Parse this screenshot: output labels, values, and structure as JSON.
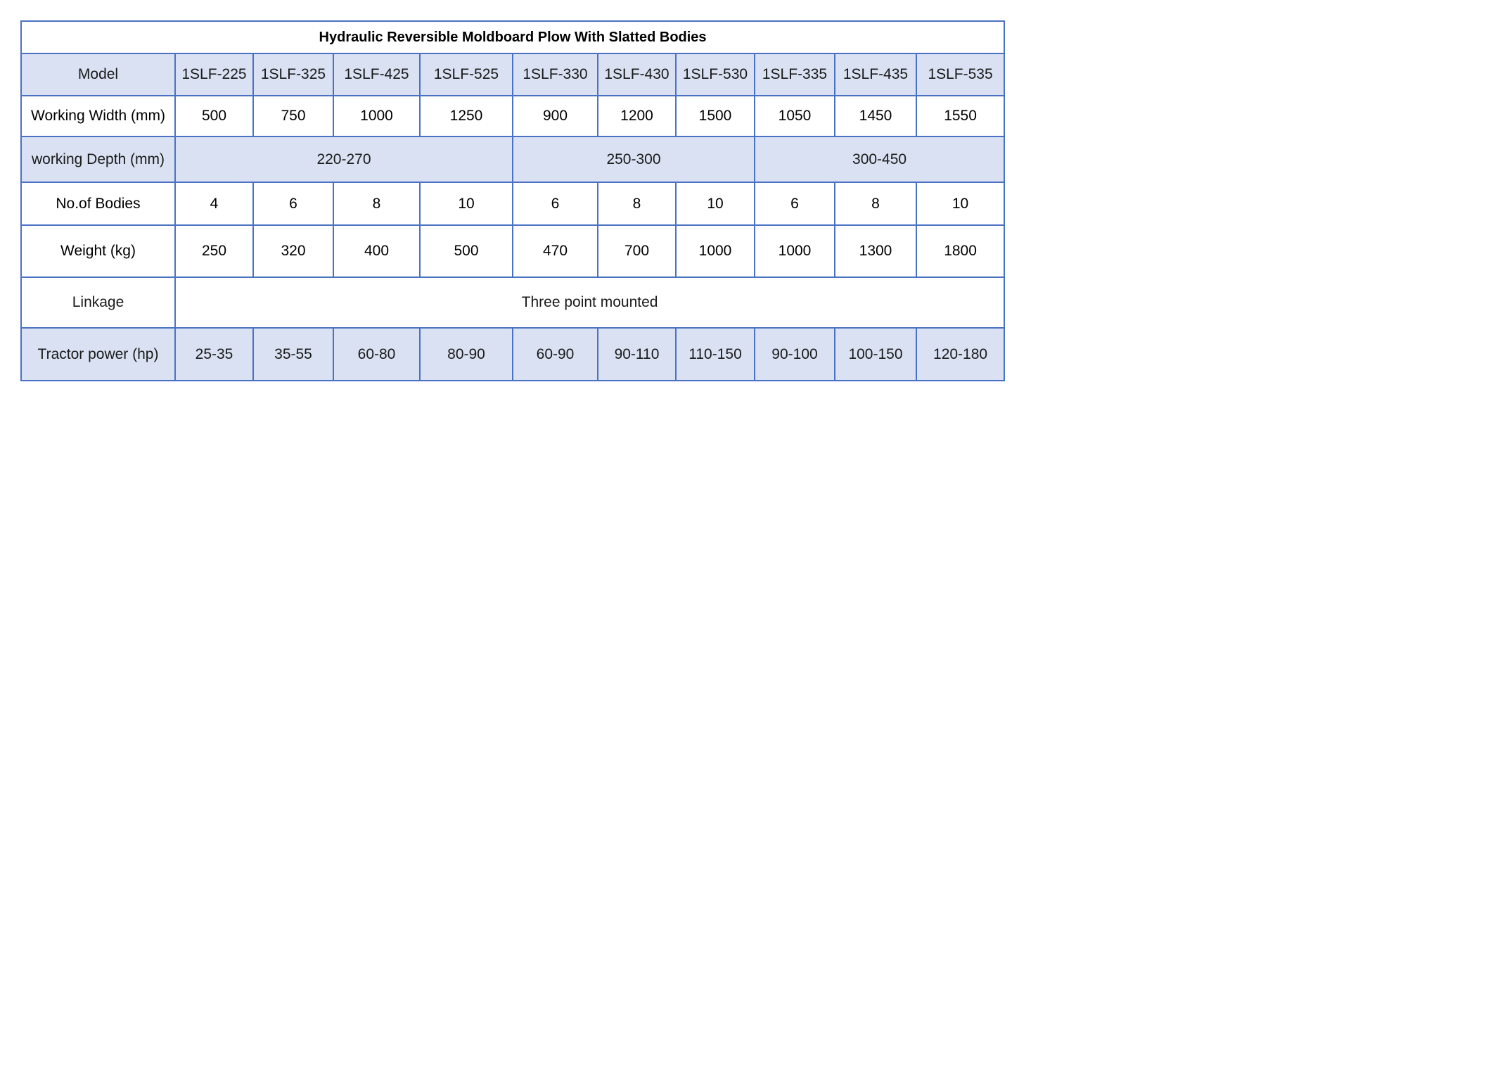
{
  "title": "Hydraulic Reversible Moldboard Plow With Slatted Bodies",
  "colors": {
    "border": "#4a72c4",
    "band_fill": "#d9e1f2"
  },
  "rows": {
    "model": {
      "label": "Model",
      "values": [
        "1SLF-225",
        "1SLF-325",
        "1SLF-425",
        "1SLF-525",
        "1SLF-330",
        "1SLF-430",
        "1SLF-530",
        "1SLF-335",
        "1SLF-435",
        "1SLF-535"
      ]
    },
    "working_width": {
      "label": "Working Width (mm)",
      "values": [
        "500",
        "750",
        "1000",
        "1250",
        "900",
        "1200",
        "1500",
        "1050",
        "1450",
        "1550"
      ]
    },
    "working_depth": {
      "label": "working Depth (mm)",
      "groups": [
        "220-270",
        "250-300",
        "300-450"
      ]
    },
    "bodies": {
      "label": "No.of Bodies",
      "values": [
        "4",
        "6",
        "8",
        "10",
        "6",
        "8",
        "10",
        "6",
        "8",
        "10"
      ]
    },
    "weight": {
      "label": "Weight (kg)",
      "values": [
        "250",
        "320",
        "400",
        "500",
        "470",
        "700",
        "1000",
        "1000",
        "1300",
        "1800"
      ]
    },
    "linkage": {
      "label": "Linkage",
      "value": "Three point mounted"
    },
    "tractor_power": {
      "label": "Tractor power (hp)",
      "values": [
        "25-35",
        "35-55",
        "60-80",
        "80-90",
        "60-90",
        "90-110",
        "110-150",
        "90-100",
        "100-150",
        "120-180"
      ]
    }
  }
}
